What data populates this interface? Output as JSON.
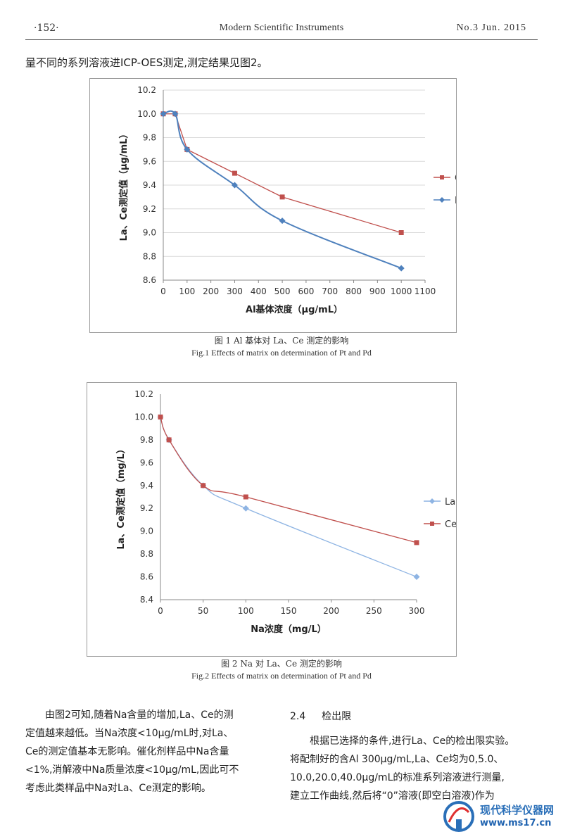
{
  "header": {
    "page_number": "·152·",
    "journal": "Modern Scientific Instruments",
    "issue": "No.3 Jun. 2015"
  },
  "intro_text": "量不同的系列溶液进ICP-OES测定,测定结果见图2。",
  "figures": {
    "fig1": {
      "caption_zh": "图 1  Al 基体对 La、Ce 测定的影响",
      "caption_en": "Fig.1  Effects of matrix on determination of Pt and Pd"
    },
    "fig2": {
      "caption_zh": "图 2  Na 对 La、Ce 测定的影响",
      "caption_en": "Fig.2  Effects of matrix on determination of Pt and Pd"
    }
  },
  "chart_data": [
    {
      "type": "line",
      "xlabel": "Al基体浓度（μg/mL）",
      "ylabel": "La、Ce测定值（μg/mL）",
      "xlim": [
        0,
        1100
      ],
      "ylim": [
        8.6,
        10.2
      ],
      "xticks": [
        "0",
        "100",
        "200",
        "300",
        "400",
        "500",
        "600",
        "700",
        "800",
        "900",
        "1000",
        "1100"
      ],
      "yticks": [
        "8.6",
        "8.8",
        "9.0",
        "9.2",
        "9.4",
        "9.6",
        "9.8",
        "10.0",
        "10.2"
      ],
      "grid": true,
      "legend_position": "right",
      "series": [
        {
          "name": "Ce",
          "color": "#c0504d",
          "marker": "square",
          "smooth": false,
          "x": [
            0,
            50,
            100,
            300,
            500,
            1000
          ],
          "y": [
            10.0,
            10.0,
            9.7,
            9.5,
            9.3,
            9.0
          ]
        },
        {
          "name": "La",
          "color": "#4f81bd",
          "marker": "diamond",
          "smooth": true,
          "x": [
            0,
            50,
            100,
            300,
            500,
            1000
          ],
          "y": [
            10.0,
            10.0,
            9.7,
            9.4,
            9.1,
            8.7
          ]
        }
      ]
    },
    {
      "type": "line",
      "xlabel": "Na浓度（mg/L）",
      "ylabel": "La、Ce测定值（mg/L）",
      "xlim": [
        0,
        300
      ],
      "ylim": [
        8.4,
        10.2
      ],
      "xticks": [
        "0",
        "50",
        "100",
        "150",
        "200",
        "250",
        "300"
      ],
      "yticks": [
        "8.4",
        "8.6",
        "8.8",
        "9.0",
        "9.2",
        "9.4",
        "9.6",
        "9.8",
        "10.0",
        "10.2"
      ],
      "grid": false,
      "legend_position": "right",
      "series": [
        {
          "name": "La",
          "color": "#8eb4e3",
          "marker": "diamond",
          "smooth": true,
          "x": [
            0,
            10,
            50,
            100,
            300
          ],
          "y": [
            10.0,
            9.8,
            9.4,
            9.2,
            8.6
          ]
        },
        {
          "name": "Ce",
          "color": "#c0504d",
          "marker": "square",
          "smooth": true,
          "x": [
            0,
            10,
            50,
            100,
            300
          ],
          "y": [
            10.0,
            9.8,
            9.4,
            9.3,
            8.9
          ]
        }
      ]
    }
  ],
  "body": {
    "left_para": [
      "由图2可知,随着Na含量的增加,La、Ce的测",
      "定值越来越低。当Na浓度<10μg/mL时,对La、",
      "Ce的测定值基本无影响。催化剂样品中Na含量",
      "<1%,消解液中Na质量浓度<10μg/mL,因此可不",
      "考虑此类样品中Na对La、Ce测定的影响。"
    ],
    "section_number": "2.4",
    "section_title": "检出限",
    "right_para": [
      "根据已选择的条件,进行La、Ce的检出限实验。",
      "将配制好的含Al 300μg/mL,La、Ce均为0,5.0、",
      "10.0,20.0,40.0μg/mL的标准系列溶液进行测量,",
      "建立工作曲线,然后将“0”溶液(即空白溶液)作为"
    ]
  },
  "watermark": {
    "name": "现代科学仪器网",
    "url": "www.ms17.cn",
    "colors": {
      "primary": "#2a6fb8",
      "accent": "#e03030"
    }
  }
}
